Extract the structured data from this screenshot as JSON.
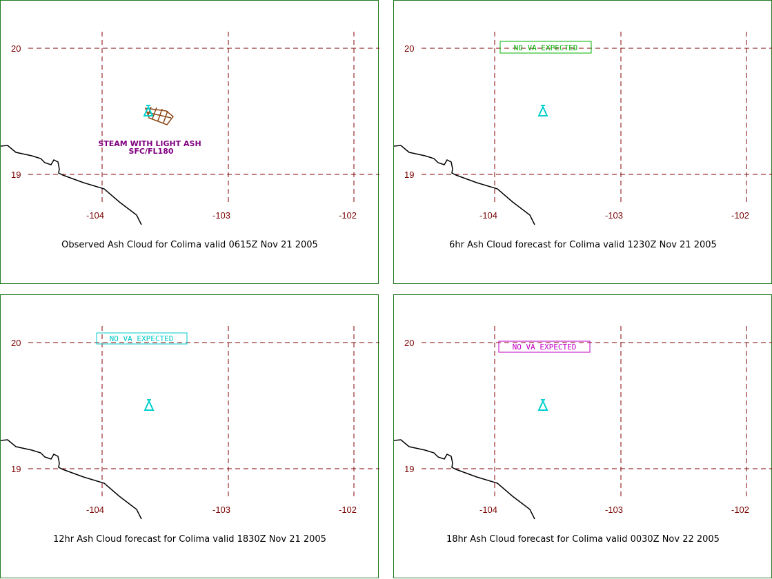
{
  "panels": [
    {
      "id": "observed",
      "caption": "Observed Ash Cloud for Colima valid 0615Z Nov 21 2005",
      "lat_labels": [
        "20",
        "19"
      ],
      "lon_labels": [
        "-104",
        "-103",
        "-102"
      ],
      "ash_label_line1": "STEAM WITH LIGHT ASH",
      "ash_label_line2": "SFC/FL180"
    },
    {
      "id": "fc6",
      "caption": "6hr Ash Cloud forecast for Colima valid 1230Z Nov 21 2005",
      "lat_labels": [
        "20",
        "19"
      ],
      "lon_labels": [
        "-104",
        "-103",
        "-102"
      ],
      "nova_text": "NO VA EXPECTED",
      "nova_color": "#00b000"
    },
    {
      "id": "fc12",
      "caption": "12hr Ash Cloud forecast for Colima valid 1830Z Nov 21 2005",
      "lat_labels": [
        "20",
        "19"
      ],
      "lon_labels": [
        "-104",
        "-103",
        "-102"
      ],
      "nova_text": "NO VA EXPECTED",
      "nova_color": "#00c8c8"
    },
    {
      "id": "fc18",
      "caption": "18hr Ash Cloud forecast for Colima valid 0030Z Nov 22 2005",
      "lat_labels": [
        "20",
        "19"
      ],
      "lon_labels": [
        "-104",
        "-103",
        "-102"
      ],
      "nova_text": "NO VA EXPECTED",
      "nova_color": "#c000c0"
    }
  ],
  "colors": {
    "grid": "#800000",
    "border": "#1f7a1f",
    "coastline": "#000000",
    "volcano_icon": "#00d0d0",
    "ash_area": "#8b4513"
  },
  "icons": {
    "volcano": "volcano-icon"
  }
}
